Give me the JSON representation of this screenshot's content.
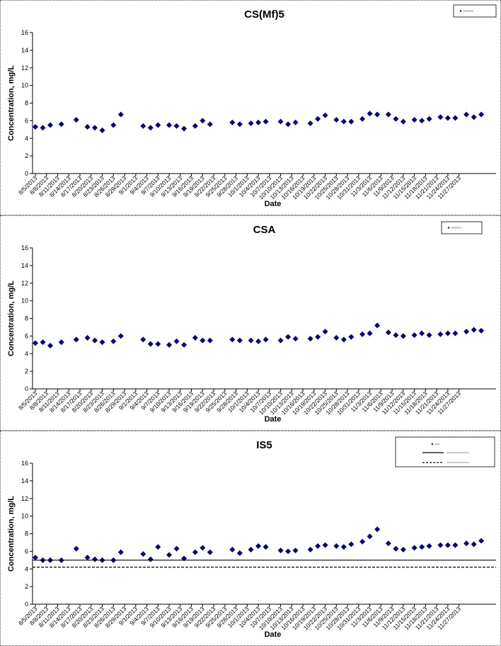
{
  "dates": [
    "8/5/2013",
    "8/8/2013",
    "8/11/2013",
    "8/14/2013",
    "8/17/2013",
    "8/20/2013",
    "8/23/2013",
    "8/26/2013",
    "8/29/2013",
    "9/1/2013",
    "9/4/2013",
    "9/7/2013",
    "9/10/2013",
    "9/13/2013",
    "9/16/2013",
    "9/19/2013",
    "9/22/2013",
    "9/25/2013",
    "9/28/2013",
    "10/1/2013",
    "10/4/2013",
    "10/7/2013",
    "10/10/2013",
    "10/13/2013",
    "10/16/2013",
    "10/19/2013",
    "10/22/2013",
    "10/25/2013",
    "10/28/2013",
    "10/31/2013",
    "11/3/2013",
    "11/6/2013",
    "11/9/2013",
    "11/12/2013",
    "11/15/2013",
    "11/18/2013",
    "11/21/2013",
    "11/24/2013",
    "11/27/2013"
  ],
  "chart_data": [
    {
      "type": "scatter",
      "title": "CS(Mf)5",
      "xlabel": "Date",
      "ylabel": "Concentration, mg/L",
      "ylim": [
        0,
        16
      ],
      "yticks": [
        0,
        2,
        4,
        6,
        8,
        10,
        12,
        14,
        16
      ],
      "x_axis": "date",
      "x_range": [
        "8/5/2013",
        "11/30/2013"
      ],
      "legend_position": "top-right",
      "series": [
        {
          "marker": "diamond",
          "color": "#000080",
          "points": [
            [
              "8/5/2013",
              5.3
            ],
            [
              "8/7/2013",
              5.2
            ],
            [
              "8/9/2013",
              5.5
            ],
            [
              "8/12/2013",
              5.6
            ],
            [
              "8/16/2013",
              6.1
            ],
            [
              "8/19/2013",
              5.3
            ],
            [
              "8/21/2013",
              5.2
            ],
            [
              "8/23/2013",
              4.9
            ],
            [
              "8/26/2013",
              5.5
            ],
            [
              "8/28/2013",
              6.7
            ],
            [
              "9/3/2013",
              5.4
            ],
            [
              "9/5/2013",
              5.2
            ],
            [
              "9/7/2013",
              5.5
            ],
            [
              "9/10/2013",
              5.5
            ],
            [
              "9/12/2013",
              5.4
            ],
            [
              "9/14/2013",
              5.1
            ],
            [
              "9/17/2013",
              5.4
            ],
            [
              "9/19/2013",
              6.0
            ],
            [
              "9/21/2013",
              5.6
            ],
            [
              "9/27/2013",
              5.8
            ],
            [
              "9/29/2013",
              5.6
            ],
            [
              "10/2/2013",
              5.7
            ],
            [
              "10/4/2013",
              5.8
            ],
            [
              "10/6/2013",
              5.9
            ],
            [
              "10/10/2013",
              5.9
            ],
            [
              "10/12/2013",
              5.6
            ],
            [
              "10/14/2013",
              5.8
            ],
            [
              "10/18/2013",
              5.7
            ],
            [
              "10/20/2013",
              6.2
            ],
            [
              "10/22/2013",
              6.6
            ],
            [
              "10/25/2013",
              6.1
            ],
            [
              "10/27/2013",
              5.9
            ],
            [
              "10/29/2013",
              5.9
            ],
            [
              "11/1/2013",
              6.2
            ],
            [
              "11/3/2013",
              6.8
            ],
            [
              "11/5/2013",
              6.7
            ],
            [
              "11/8/2013",
              6.7
            ],
            [
              "11/10/2013",
              6.2
            ],
            [
              "11/12/2013",
              5.9
            ],
            [
              "11/15/2013",
              6.1
            ],
            [
              "11/17/2013",
              6.0
            ],
            [
              "11/19/2013",
              6.2
            ],
            [
              "11/22/2013",
              6.4
            ],
            [
              "11/24/2013",
              6.3
            ],
            [
              "11/26/2013",
              6.3
            ],
            [
              "11/29/2013",
              6.7
            ],
            [
              "12/1/2013",
              6.4
            ],
            [
              "12/3/2013",
              6.7
            ]
          ]
        }
      ]
    },
    {
      "type": "scatter",
      "title": "CSA",
      "xlabel": "Date",
      "ylabel": "Concentration, mg/L",
      "ylim": [
        0,
        16
      ],
      "yticks": [
        0,
        2,
        4,
        6,
        8,
        10,
        12,
        14,
        16
      ],
      "x_axis": "date",
      "x_range": [
        "8/5/2013",
        "11/30/2013"
      ],
      "legend_position": "top-right",
      "series": [
        {
          "marker": "diamond",
          "color": "#000080",
          "points": [
            [
              "8/5/2013",
              5.2
            ],
            [
              "8/7/2013",
              5.3
            ],
            [
              "8/9/2013",
              4.9
            ],
            [
              "8/12/2013",
              5.3
            ],
            [
              "8/16/2013",
              5.6
            ],
            [
              "8/19/2013",
              5.8
            ],
            [
              "8/21/2013",
              5.5
            ],
            [
              "8/23/2013",
              5.3
            ],
            [
              "8/26/2013",
              5.4
            ],
            [
              "8/28/2013",
              6.0
            ],
            [
              "9/3/2013",
              5.6
            ],
            [
              "9/5/2013",
              5.1
            ],
            [
              "9/7/2013",
              5.1
            ],
            [
              "9/10/2013",
              5.0
            ],
            [
              "9/12/2013",
              5.4
            ],
            [
              "9/14/2013",
              5.0
            ],
            [
              "9/17/2013",
              5.8
            ],
            [
              "9/19/2013",
              5.5
            ],
            [
              "9/21/2013",
              5.5
            ],
            [
              "9/27/2013",
              5.6
            ],
            [
              "9/29/2013",
              5.5
            ],
            [
              "10/2/2013",
              5.5
            ],
            [
              "10/4/2013",
              5.4
            ],
            [
              "10/6/2013",
              5.6
            ],
            [
              "10/10/2013",
              5.5
            ],
            [
              "10/12/2013",
              5.9
            ],
            [
              "10/14/2013",
              5.7
            ],
            [
              "10/18/2013",
              5.7
            ],
            [
              "10/20/2013",
              5.9
            ],
            [
              "10/22/2013",
              6.5
            ],
            [
              "10/25/2013",
              5.8
            ],
            [
              "10/27/2013",
              5.6
            ],
            [
              "10/29/2013",
              5.9
            ],
            [
              "11/1/2013",
              6.2
            ],
            [
              "11/3/2013",
              6.3
            ],
            [
              "11/5/2013",
              7.2
            ],
            [
              "11/8/2013",
              6.4
            ],
            [
              "11/10/2013",
              6.1
            ],
            [
              "11/12/2013",
              6.0
            ],
            [
              "11/15/2013",
              6.1
            ],
            [
              "11/17/2013",
              6.3
            ],
            [
              "11/19/2013",
              6.1
            ],
            [
              "11/22/2013",
              6.2
            ],
            [
              "11/24/2013",
              6.3
            ],
            [
              "11/26/2013",
              6.3
            ],
            [
              "11/29/2013",
              6.5
            ],
            [
              "12/1/2013",
              6.7
            ],
            [
              "12/3/2013",
              6.6
            ]
          ]
        }
      ]
    },
    {
      "type": "scatter",
      "title": "IS5",
      "xlabel": "Date",
      "ylabel": "Concentration, mg/L",
      "ylim": [
        0,
        16
      ],
      "yticks": [
        0,
        2,
        4,
        6,
        8,
        10,
        12,
        14,
        16
      ],
      "x_axis": "date",
      "x_range": [
        "8/5/2013",
        "11/30/2013"
      ],
      "legend_position": "top-right",
      "series": [
        {
          "marker": "diamond",
          "color": "#000080",
          "points": [
            [
              "8/5/2013",
              5.3
            ],
            [
              "8/7/2013",
              5.0
            ],
            [
              "8/9/2013",
              5.0
            ],
            [
              "8/12/2013",
              5.0
            ],
            [
              "8/16/2013",
              6.3
            ],
            [
              "8/19/2013",
              5.3
            ],
            [
              "8/21/2013",
              5.1
            ],
            [
              "8/23/2013",
              5.0
            ],
            [
              "8/26/2013",
              5.0
            ],
            [
              "8/28/2013",
              5.9
            ],
            [
              "9/3/2013",
              5.7
            ],
            [
              "9/5/2013",
              5.1
            ],
            [
              "9/7/2013",
              6.5
            ],
            [
              "9/10/2013",
              5.6
            ],
            [
              "9/12/2013",
              6.3
            ],
            [
              "9/14/2013",
              5.2
            ],
            [
              "9/17/2013",
              5.9
            ],
            [
              "9/19/2013",
              6.4
            ],
            [
              "9/21/2013",
              5.9
            ],
            [
              "9/27/2013",
              6.2
            ],
            [
              "9/29/2013",
              5.8
            ],
            [
              "10/2/2013",
              6.2
            ],
            [
              "10/4/2013",
              6.6
            ],
            [
              "10/6/2013",
              6.5
            ],
            [
              "10/10/2013",
              6.1
            ],
            [
              "10/12/2013",
              6.0
            ],
            [
              "10/14/2013",
              6.1
            ],
            [
              "10/18/2013",
              6.2
            ],
            [
              "10/20/2013",
              6.6
            ],
            [
              "10/22/2013",
              6.7
            ],
            [
              "10/25/2013",
              6.6
            ],
            [
              "10/27/2013",
              6.5
            ],
            [
              "10/29/2013",
              6.8
            ],
            [
              "11/1/2013",
              7.1
            ],
            [
              "11/3/2013",
              7.7
            ],
            [
              "11/5/2013",
              8.5
            ],
            [
              "11/8/2013",
              6.9
            ],
            [
              "11/10/2013",
              6.3
            ],
            [
              "11/12/2013",
              6.2
            ],
            [
              "11/15/2013",
              6.4
            ],
            [
              "11/17/2013",
              6.5
            ],
            [
              "11/19/2013",
              6.6
            ],
            [
              "11/22/2013",
              6.7
            ],
            [
              "11/24/2013",
              6.7
            ],
            [
              "11/26/2013",
              6.7
            ],
            [
              "11/29/2013",
              6.9
            ],
            [
              "12/1/2013",
              6.8
            ],
            [
              "12/3/2013",
              7.2
            ]
          ]
        },
        {
          "line": "solid",
          "color": "#000000",
          "value": 5.0
        },
        {
          "line": "dashed",
          "color": "#000000",
          "value": 4.2
        }
      ]
    }
  ]
}
